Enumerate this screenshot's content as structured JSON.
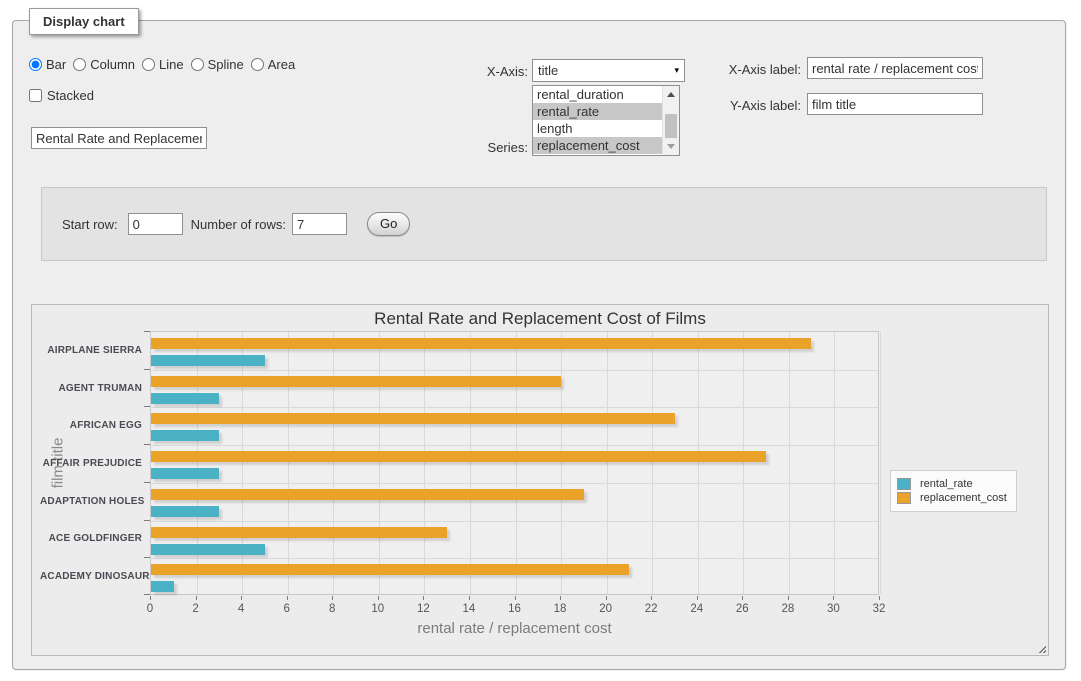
{
  "window": {
    "legend": "Display chart"
  },
  "icons": {
    "select_arrow": "▾"
  },
  "controls": {
    "chart_types": [
      {
        "label": "Bar",
        "selected": true
      },
      {
        "label": "Column",
        "selected": false
      },
      {
        "label": "Line",
        "selected": false
      },
      {
        "label": "Spline",
        "selected": false
      },
      {
        "label": "Area",
        "selected": false
      }
    ],
    "stacked": {
      "label": "Stacked",
      "checked": false
    },
    "title_input": {
      "value": "Rental Rate and Replacement Cost of Films"
    },
    "x_axis": {
      "label": "X-Axis:",
      "selected_value": "title"
    },
    "series": {
      "label": "Series:",
      "options": [
        {
          "label": "rental_duration",
          "selected": false
        },
        {
          "label": "rental_rate",
          "selected": true
        },
        {
          "label": "length",
          "selected": false
        },
        {
          "label": "replacement_cost",
          "selected": true
        }
      ]
    },
    "x_axis_label": {
      "label": "X-Axis label:",
      "value": "rental rate / replacement cost"
    },
    "y_axis_label": {
      "label": "Y-Axis label:",
      "value": "film title"
    }
  },
  "row_controls": {
    "start_row_label": "Start row:",
    "start_row_value": "0",
    "num_rows_label": "Number of rows:",
    "num_rows_value": "7",
    "go_label": "Go"
  },
  "chart_data": {
    "type": "bar",
    "orientation": "horizontal",
    "title": "Rental Rate and Replacement Cost of Films",
    "xlabel": "rental rate / replacement cost",
    "ylabel": "film title",
    "categories": [
      "AIRPLANE SIERRA",
      "AGENT TRUMAN",
      "AFRICAN EGG",
      "AFFAIR PREJUDICE",
      "ADAPTATION HOLES",
      "ACE GOLDFINGER",
      "ACADEMY DINOSAUR"
    ],
    "series": [
      {
        "name": "rental_rate",
        "color": "#4bb2c5",
        "values": [
          4.99,
          2.99,
          2.99,
          2.99,
          2.99,
          4.99,
          0.99
        ]
      },
      {
        "name": "replacement_cost",
        "color": "#EAA228",
        "values": [
          28.99,
          17.99,
          22.99,
          26.99,
          18.99,
          12.99,
          20.99
        ]
      }
    ],
    "xlim": [
      0,
      32
    ],
    "xtick_step": 2,
    "grid": true,
    "legend_position": "right"
  }
}
